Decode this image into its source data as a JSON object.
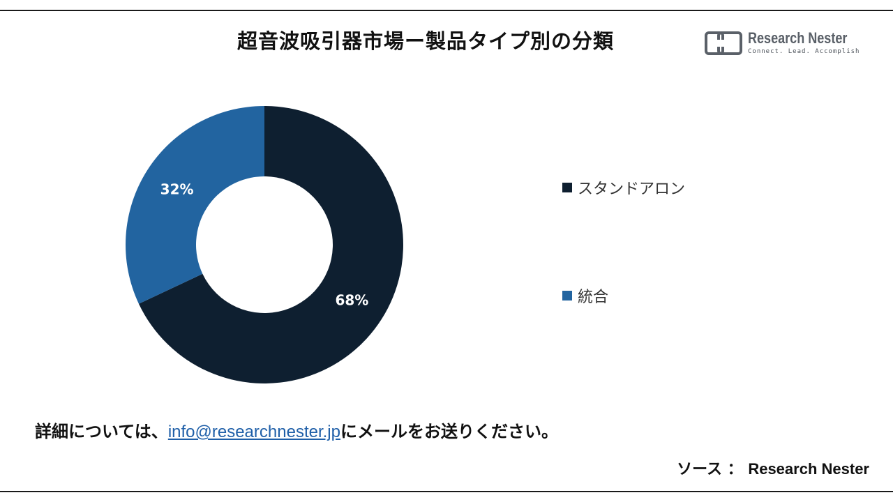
{
  "title": "超音波吸引器市場ー製品タイプ別の分類",
  "logo": {
    "name": "Research Nester",
    "tagline": "Connect. Lead. Accomplish"
  },
  "chart_data": {
    "type": "pie",
    "donut": true,
    "categories": [
      "スタンドアロン",
      "統合"
    ],
    "values": [
      68,
      32
    ],
    "labels": [
      "68%",
      "32%"
    ],
    "colors": [
      "#0e1f30",
      "#2264a0"
    ],
    "legend_position": "right"
  },
  "footer": {
    "prefix": "詳細については、",
    "email": "info@researchnester.jp",
    "suffix": "にメールをお送りください。"
  },
  "source": {
    "label": "ソース ：",
    "name": "Research Nester"
  },
  "colors": {
    "text": "#111111",
    "link": "#1f5fa8",
    "rule": "#1a1a1a"
  }
}
